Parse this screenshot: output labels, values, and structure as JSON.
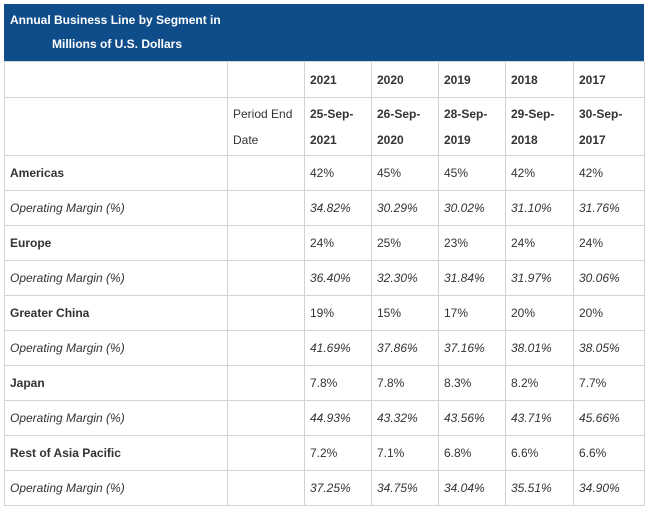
{
  "title": {
    "line1": "Annual Business Line by Segment in",
    "line2": "Millions of U.S. Dollars"
  },
  "years": [
    "2021",
    "2020",
    "2019",
    "2018",
    "2017"
  ],
  "period_label_1": "Period End",
  "period_label_2": "Date",
  "period_ends": [
    {
      "d": "25-Sep-",
      "y": "2021"
    },
    {
      "d": "26-Sep-",
      "y": "2020"
    },
    {
      "d": "28-Sep-",
      "y": "2019"
    },
    {
      "d": "29-Sep-",
      "y": "2018"
    },
    {
      "d": "30-Sep-",
      "y": "2017"
    }
  ],
  "rows": [
    {
      "label": "Americas",
      "italic": false,
      "values": [
        "42%",
        "45%",
        "45%",
        "42%",
        "42%"
      ]
    },
    {
      "label": "Operating Margin (%)",
      "italic": true,
      "values": [
        "34.82%",
        "30.29%",
        "30.02%",
        "31.10%",
        "31.76%"
      ]
    },
    {
      "label": "Europe",
      "italic": false,
      "values": [
        "24%",
        "25%",
        "23%",
        "24%",
        "24%"
      ]
    },
    {
      "label": "Operating Margin (%)",
      "italic": true,
      "values": [
        "36.40%",
        "32.30%",
        "31.84%",
        "31.97%",
        "30.06%"
      ]
    },
    {
      "label": "Greater China",
      "italic": false,
      "values": [
        "19%",
        "15%",
        "17%",
        "20%",
        "20%"
      ]
    },
    {
      "label": "Operating Margin (%)",
      "italic": true,
      "values": [
        "41.69%",
        "37.86%",
        "37.16%",
        "38.01%",
        "38.05%"
      ]
    },
    {
      "label": "Japan",
      "italic": false,
      "values": [
        "7.8%",
        "7.8%",
        "8.3%",
        "8.2%",
        "7.7%"
      ]
    },
    {
      "label": "Operating Margin (%)",
      "italic": true,
      "values": [
        "44.93%",
        "43.32%",
        "43.56%",
        "43.71%",
        "45.66%"
      ]
    },
    {
      "label": "Rest of Asia Pacific",
      "italic": false,
      "values": [
        "7.2%",
        "7.1%",
        "6.8%",
        "6.6%",
        "6.6%"
      ]
    },
    {
      "label": "Operating Margin (%)",
      "italic": true,
      "values": [
        "37.25%",
        "34.75%",
        "34.04%",
        "35.51%",
        "34.90%"
      ]
    }
  ]
}
